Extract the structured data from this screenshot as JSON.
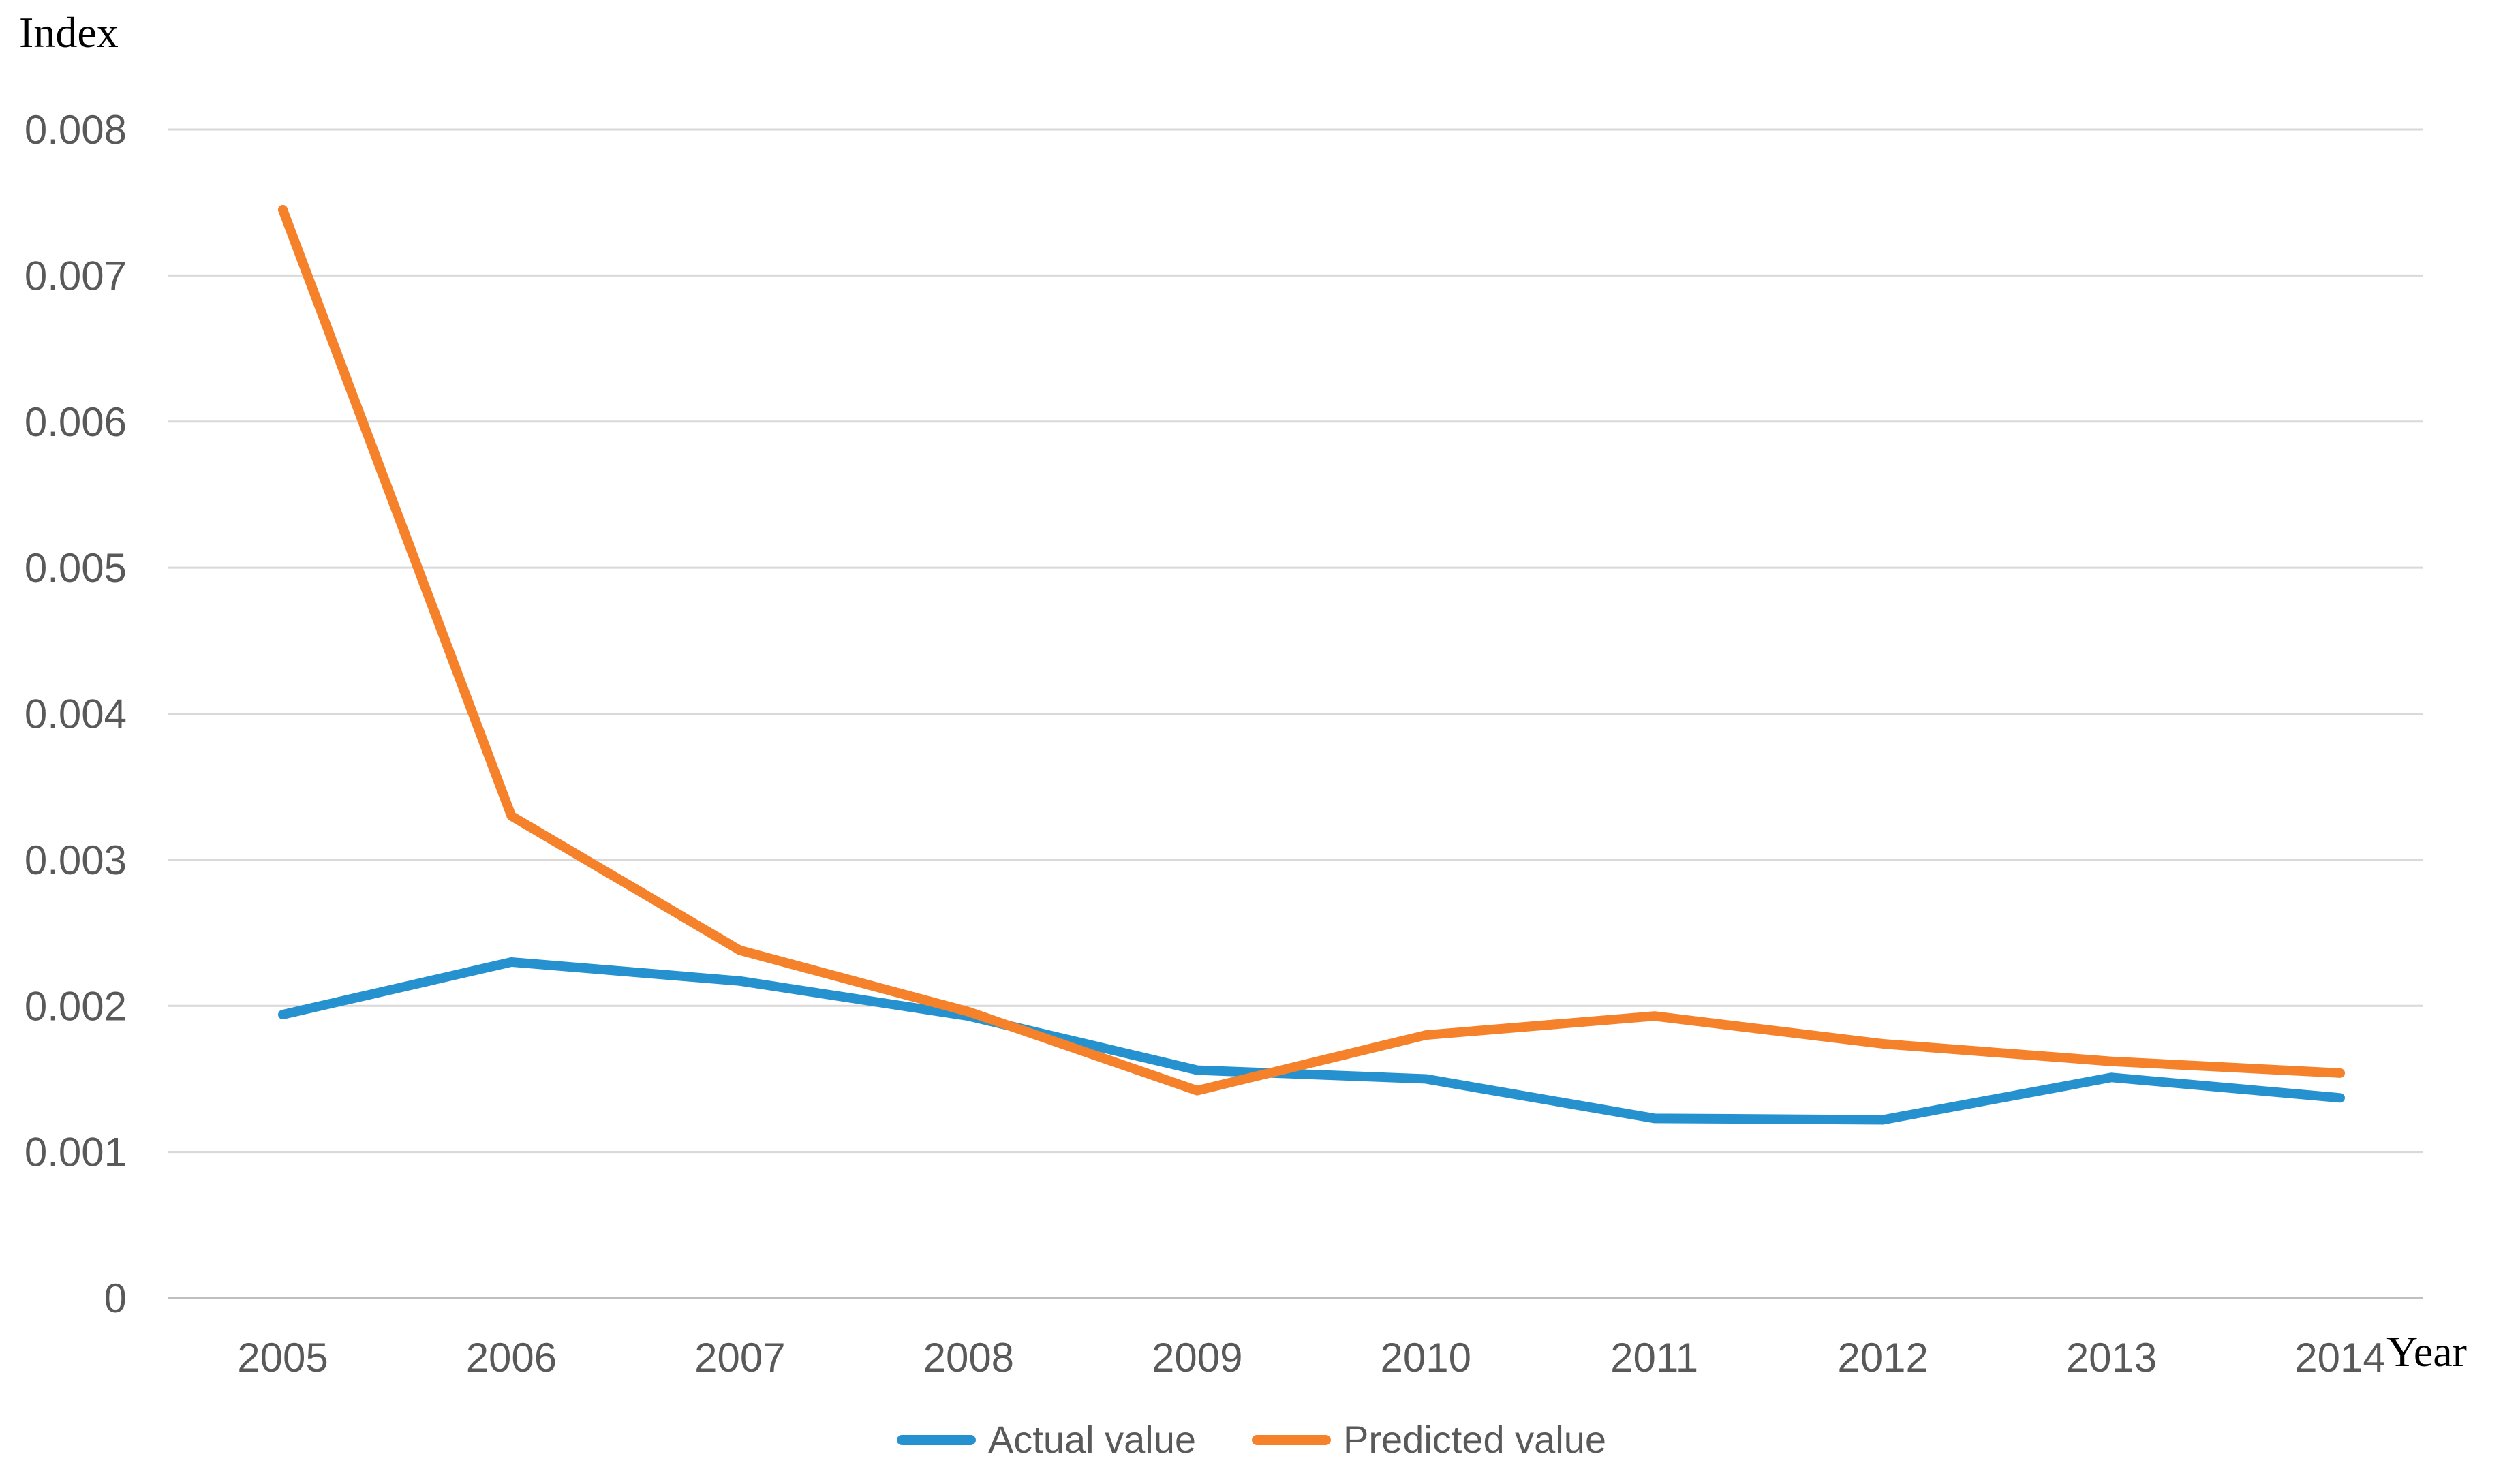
{
  "chart_data": {
    "type": "line",
    "title": "",
    "x_axis": {
      "label": "Year",
      "categories": [
        "2005",
        "2006",
        "2007",
        "2008",
        "2009",
        "2010",
        "2011",
        "2012",
        "2013",
        "2014"
      ]
    },
    "y_axis": {
      "label": "Index",
      "ticks": [
        "0",
        "0.001",
        "0.002",
        "0.003",
        "0.004",
        "0.005",
        "0.006",
        "0.007",
        "0.008"
      ],
      "range": [
        0,
        0.008
      ]
    },
    "grid": "horizontal-only",
    "legend_position": "bottom-center",
    "series": [
      {
        "name": "Actual value",
        "color": "#2592CF",
        "values": [
          0.00194,
          0.0023,
          0.00217,
          0.00193,
          0.00156,
          0.0015,
          0.00123,
          0.00122,
          0.00151,
          0.00137
        ]
      },
      {
        "name": "Predicted value",
        "color": "#F5812B",
        "values": [
          0.00745,
          0.0033,
          0.00238,
          0.00196,
          0.00142,
          0.0018,
          0.00193,
          0.00174,
          0.00162,
          0.00154
        ]
      }
    ],
    "colors": {
      "gridline": "#D9D9D9",
      "axis_line": "#BFBFBF",
      "tick_text": "#595959",
      "axis_title_text": "#000000",
      "background": "#FFFFFF"
    }
  }
}
